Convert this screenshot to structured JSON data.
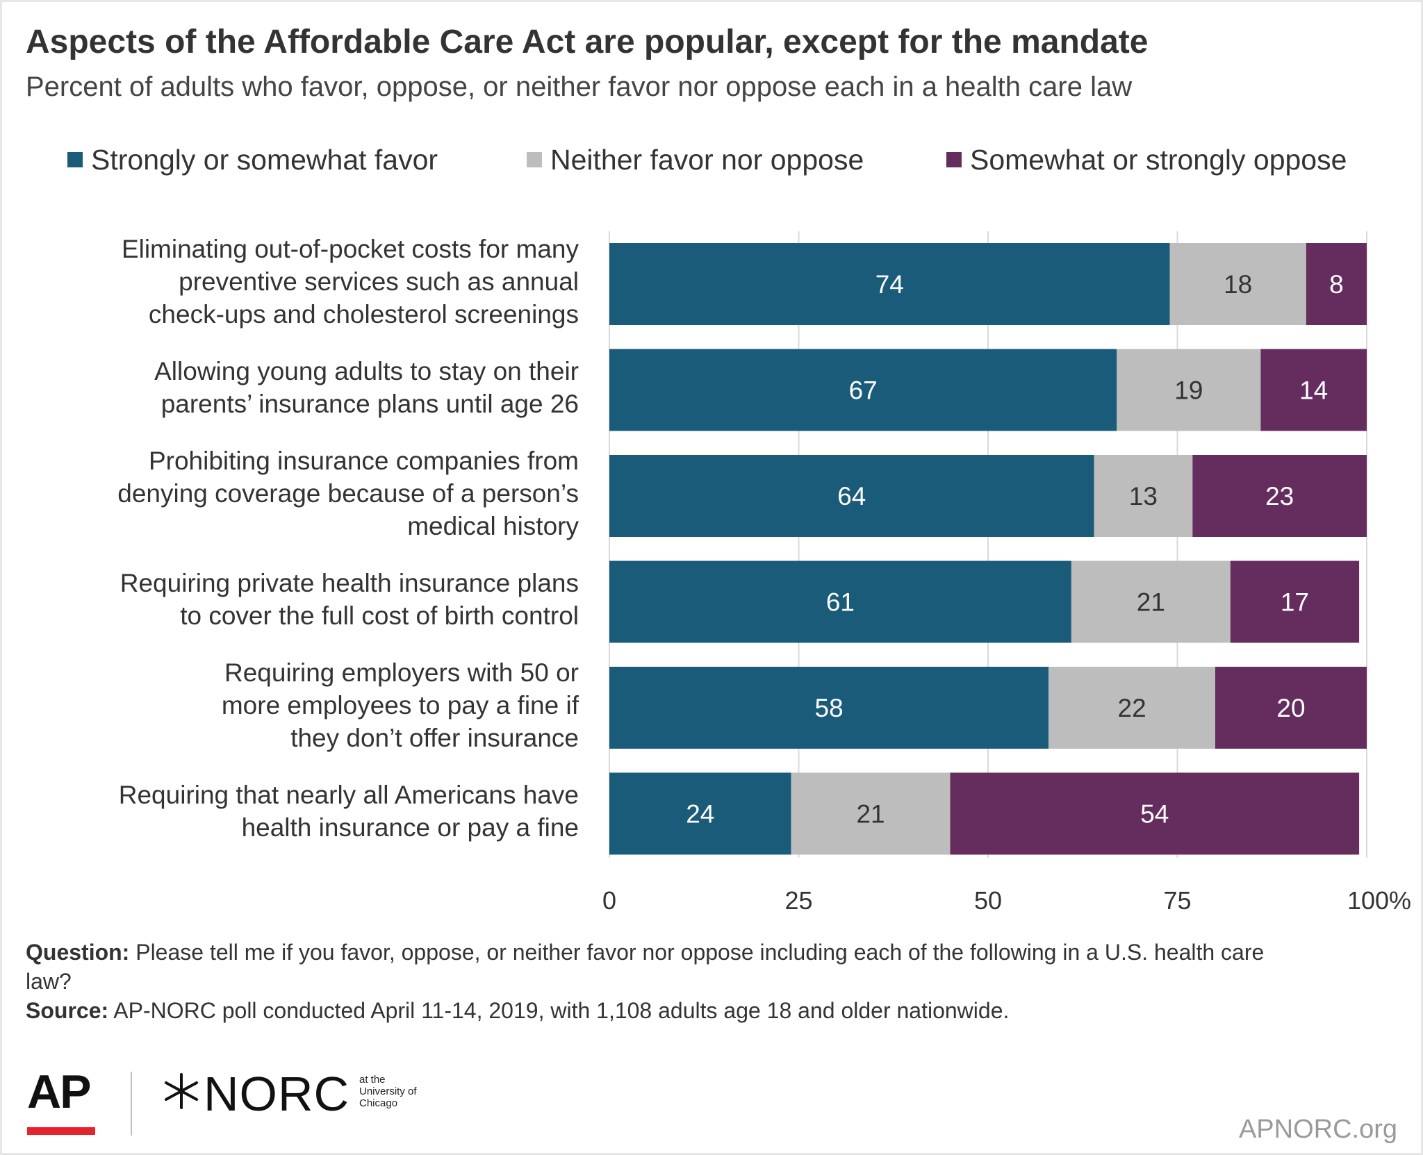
{
  "title": "Aspects of the Affordable Care Act are popular, except for the mandate",
  "subtitle": "Percent of adults who favor, oppose, or neither favor nor oppose each in a health care law",
  "colors": {
    "favor": "#195b78",
    "neither": "#bdbdbd",
    "oppose": "#652d5e",
    "grid": "#d9d9d9"
  },
  "chart_data": {
    "type": "bar",
    "orientation": "horizontal",
    "stacked": true,
    "categories": [
      "Eliminating out-of-pocket costs for many\npreventive services such as annual\ncheck-ups and cholesterol screenings",
      "Allowing young adults to stay on their\nparents’ insurance plans until age 26",
      "Prohibiting insurance companies from\ndenying coverage because of a person’s\nmedical history",
      "Requiring private health insurance plans\nto cover the full cost of birth control",
      "Requiring employers with 50 or\nmore employees to pay a fine if\nthey don’t offer insurance",
      "Requiring that nearly all Americans have\nhealth insurance or pay a fine"
    ],
    "series": [
      {
        "name": "Strongly or somewhat favor",
        "values": [
          74,
          67,
          64,
          61,
          58,
          24
        ]
      },
      {
        "name": "Neither favor nor oppose",
        "values": [
          18,
          19,
          13,
          21,
          22,
          21
        ]
      },
      {
        "name": "Somewhat or strongly oppose",
        "values": [
          8,
          14,
          23,
          17,
          20,
          54
        ]
      }
    ],
    "xlim": [
      0,
      100
    ],
    "xticks": [
      0,
      25,
      50,
      75,
      100
    ],
    "xtick_labels": [
      "0",
      "25",
      "50",
      "75",
      "100%"
    ],
    "grid": true,
    "legend": "top"
  },
  "notes": {
    "question_label": "Question:",
    "question_text": " Please tell me if you favor, oppose, or neither favor nor oppose including each of the following in a U.S. health care law?",
    "source_label": "Source:",
    "source_text": " AP-NORC poll conducted April 11-14, 2019, with 1,108 adults age 18 and older nationwide."
  },
  "logos": {
    "ap": "AP",
    "norc": "NORC",
    "norc_sub": "at the\nUniversity of\nChicago",
    "site": "APNORC.org"
  }
}
